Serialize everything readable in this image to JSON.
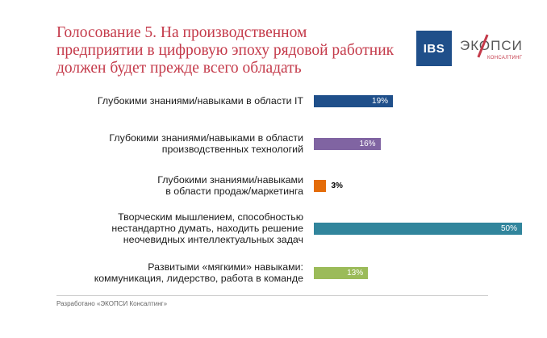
{
  "header": {
    "title": "Голосование 5. На производственном предприятии в цифровую эпоху рядовой работник должен будет прежде всего обладать"
  },
  "logos": {
    "ibs_text": "IBS",
    "ecopsy_text": "ЭКОПСИ",
    "ecopsy_sub": "КОНСАЛТИНГ"
  },
  "footer": {
    "text": "Разработано «ЭКОПСИ Консалтинг»"
  },
  "colors": {
    "title": "#c43a4a",
    "bars": [
      "#1f4f8a",
      "#8064a2",
      "#e46c0a",
      "#31859c",
      "#9bbb59"
    ]
  },
  "chart_data": {
    "type": "bar",
    "orientation": "horizontal",
    "title": "Голосование 5. На производственном предприятии в цифровую эпоху рядовой работник должен будет прежде всего обладать",
    "categories": [
      "Глубокими знаниями/навыками в области IT",
      "Глубокими знаниями/навыками в области производственных технологий",
      "Глубокими знаниями/навыками в области продаж/маркетинга",
      "Творческим мышлением, способностью нестандартно думать, находить решение неочевидных интеллектуальных задач",
      "Развитыми «мягкими» навыками: коммуникация, лидерство, работа в команде"
    ],
    "category_lines": [
      [
        "Глубокими знаниями/навыками в области IT"
      ],
      [
        "Глубокими знаниями/навыками в области",
        "производственных технологий"
      ],
      [
        "Глубокими знаниями/навыками",
        "в области продаж/маркетинга"
      ],
      [
        "Творческим мышлением, способностью",
        "нестандартно думать, находить решение",
        "неочевидных интеллектуальных задач"
      ],
      [
        "Развитыми «мягкими» навыками:",
        "коммуникация, лидерство, работа в команде"
      ]
    ],
    "values": [
      19,
      16,
      3,
      50,
      13
    ],
    "value_labels": [
      "19%",
      "16%",
      "3%",
      "50%",
      "13%"
    ],
    "xlim": [
      0,
      50
    ],
    "grid": false,
    "legend": "none"
  }
}
